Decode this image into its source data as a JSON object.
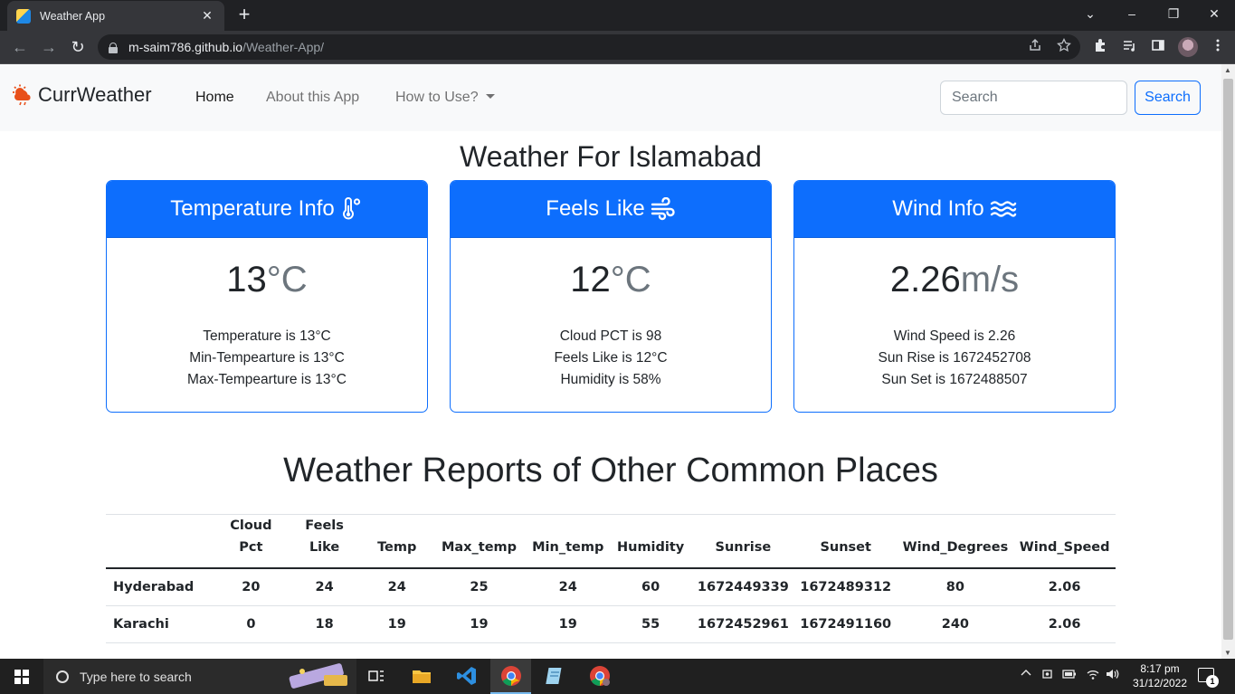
{
  "browser": {
    "tab_title": "Weather App",
    "tab_close": "✕",
    "new_tab": "+",
    "url_host": "m-saim786.github.io",
    "url_path": "/Weather-App/",
    "window_controls": {
      "chevron": "⌄",
      "minimize": "–",
      "restore": "❐",
      "close": "✕"
    },
    "nav": {
      "back": "←",
      "forward": "→",
      "reload": "↻"
    },
    "tools": [
      "share-icon",
      "star-icon",
      "extensions-icon",
      "media-icon",
      "sidepanel-icon",
      "menu-icon"
    ]
  },
  "navbar": {
    "brand": "CurrWeather",
    "links": [
      {
        "label": "Home",
        "active": true
      },
      {
        "label": "About this App",
        "active": false
      },
      {
        "label": "How to Use?",
        "active": false,
        "dropdown": true
      }
    ],
    "search_placeholder": "Search",
    "search_button": "Search"
  },
  "heading": "Weather For Islamabad",
  "cards": [
    {
      "title": "Temperature Info",
      "icon": "thermometer-icon",
      "big_value": "13",
      "big_unit": "°C",
      "lines": [
        "Temperature is 13°C",
        "Min-Tempearture is 13°C",
        "Max-Tempearture is 13°C"
      ]
    },
    {
      "title": "Feels Like",
      "icon": "wind-icon",
      "big_value": "12",
      "big_unit": "°C",
      "lines": [
        "Cloud PCT is 98",
        "Feels Like is 12°C",
        "Humidity is 58%"
      ]
    },
    {
      "title": "Wind Info",
      "icon": "water-icon",
      "big_value": "2.26",
      "big_unit": "m/s",
      "lines": [
        "Wind Speed is 2.26",
        "Sun Rise is 1672452708",
        "Sun Set is 1672488507"
      ]
    }
  ],
  "table_heading": "Weather Reports of Other Common Places",
  "table": {
    "headers": [
      "",
      "Cloud Pct",
      "Feels Like",
      "Temp",
      "Max_temp",
      "Min_temp",
      "Humidity",
      "Sunrise",
      "Sunset",
      "Wind_Degrees",
      "Wind_Speed"
    ],
    "rows": [
      [
        "Hyderabad",
        "20",
        "24",
        "24",
        "25",
        "24",
        "60",
        "1672449339",
        "1672489312",
        "80",
        "2.06"
      ],
      [
        "Karachi",
        "0",
        "18",
        "19",
        "19",
        "19",
        "55",
        "1672452961",
        "1672491160",
        "240",
        "2.06"
      ]
    ]
  },
  "taskbar": {
    "search_placeholder": "Type here to search",
    "time": "8:17 pm",
    "date": "31/12/2022",
    "notification_count": "1",
    "apps": [
      "task-view-icon",
      "file-explorer-icon",
      "vscode-icon",
      "chrome-icon",
      "notepad-icon",
      "chrome-profile-icon"
    ],
    "tray": [
      "chevron-up-icon",
      "meet-now-icon",
      "battery-icon",
      "wifi-icon",
      "volume-icon"
    ]
  }
}
